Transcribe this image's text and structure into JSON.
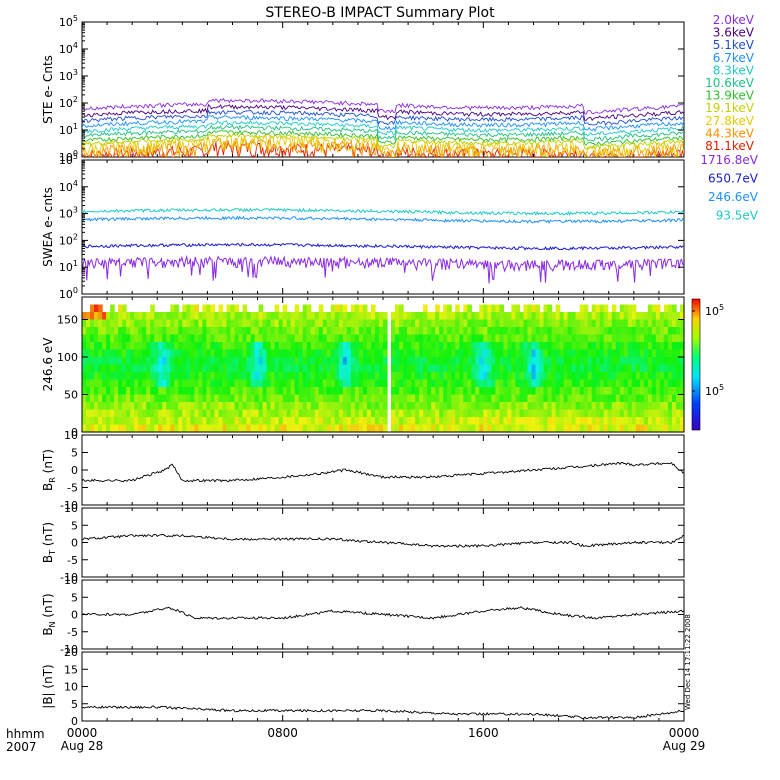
{
  "title": "STEREO-B IMPACT Summary Plot",
  "footer": {
    "left_label_top": "hhmm",
    "left_label_bottom": "2007",
    "side_stamp": "Wed Dec 14 17:11:22 2008"
  },
  "x_axis": {
    "ticks": [
      "0000",
      "0800",
      "1600",
      "0000"
    ],
    "tick_dates": [
      "Aug 28",
      "",
      "",
      "Aug 29"
    ],
    "minor_ticks_per_major": 8
  },
  "panels": {
    "ste": {
      "ylabel": "STE e- Cnts",
      "log": true,
      "ylim_decades": [
        0,
        5
      ],
      "tick_labels": [
        {
          "base": "10",
          "exp": "0"
        },
        {
          "base": "10",
          "exp": "1"
        },
        {
          "base": "10",
          "exp": "2"
        },
        {
          "base": "10",
          "exp": "3"
        },
        {
          "base": "10",
          "exp": "4"
        },
        {
          "base": "10",
          "exp": "5"
        }
      ]
    },
    "swea": {
      "ylabel": "SWEA e- cnts",
      "log": true,
      "ylim_decades": [
        0,
        5
      ],
      "tick_labels": [
        {
          "base": "10",
          "exp": "0"
        },
        {
          "base": "10",
          "exp": "1"
        },
        {
          "base": "10",
          "exp": "2"
        },
        {
          "base": "10",
          "exp": "3"
        },
        {
          "base": "10",
          "exp": "4"
        },
        {
          "base": "10",
          "exp": "5"
        }
      ]
    },
    "pad": {
      "ylabel": "246.6 eV",
      "ylim": [
        0,
        180
      ],
      "tick_labels": [
        "0",
        "50",
        "100",
        "150"
      ],
      "colorbar_labels": [
        {
          "base": "10",
          "exp": "5"
        },
        {
          "base": "10",
          "exp": "5"
        }
      ]
    },
    "br": {
      "ylabel_main": "B",
      "ylabel_sub": "R",
      "ylabel_unit": " (nT)",
      "ylim": [
        -10,
        10
      ],
      "tick_labels": [
        "-10",
        "-5",
        "0",
        "5",
        "10"
      ]
    },
    "bt": {
      "ylabel_main": "B",
      "ylabel_sub": "T",
      "ylabel_unit": " (nT)",
      "ylim": [
        -10,
        10
      ],
      "tick_labels": [
        "-10",
        "-5",
        "0",
        "5",
        "10"
      ]
    },
    "bn": {
      "ylabel_main": "B",
      "ylabel_sub": "N",
      "ylabel_unit": " (nT)",
      "ylim": [
        -10,
        10
      ],
      "tick_labels": [
        "-10",
        "-5",
        "0",
        "5",
        "10"
      ]
    },
    "bmag": {
      "ylabel": "|B| (nT)",
      "ylim": [
        0,
        20
      ],
      "tick_labels": [
        "0",
        "5",
        "10",
        "15",
        "20"
      ]
    }
  },
  "legend_ste": [
    {
      "label": "2.0keV",
      "color": "#8a2be2"
    },
    {
      "label": "3.6keV",
      "color": "#4b0082"
    },
    {
      "label": "5.1keV",
      "color": "#1e4fd0"
    },
    {
      "label": "6.7keV",
      "color": "#1e90ff"
    },
    {
      "label": "8.3keV",
      "color": "#20c8c8"
    },
    {
      "label": "10.6keV",
      "color": "#20c080"
    },
    {
      "label": "13.9keV",
      "color": "#30c030"
    },
    {
      "label": "19.1keV",
      "color": "#c0d000"
    },
    {
      "label": "27.8keV",
      "color": "#e8c800"
    },
    {
      "label": "44.3keV",
      "color": "#ff9000"
    },
    {
      "label": "81.1keV",
      "color": "#e02000"
    }
  ],
  "legend_swea": [
    {
      "label": "1716.8eV",
      "color": "#8a2be2"
    },
    {
      "label": "650.7eV",
      "color": "#1a1ad0"
    },
    {
      "label": "246.6eV",
      "color": "#1e90ff"
    },
    {
      "label": "93.5eV",
      "color": "#20c8c8"
    }
  ],
  "chart_data": [
    {
      "type": "line",
      "panel": "ste",
      "ylabel": "STE e- Cnts",
      "log_y": true,
      "series": [
        {
          "name": "2.0keV",
          "color": "#8a2be2",
          "level": 60,
          "x_hours": [
            0,
            4,
            8,
            12,
            16,
            20,
            24
          ],
          "approx_values": [
            40,
            70,
            100,
            90,
            70,
            110,
            60
          ]
        },
        {
          "name": "3.6keV",
          "color": "#4b0082",
          "level": 35
        },
        {
          "name": "5.1keV",
          "color": "#1e4fd0",
          "level": 22
        },
        {
          "name": "6.7keV",
          "color": "#1e90ff",
          "level": 14
        },
        {
          "name": "8.3keV",
          "color": "#20c8c8",
          "level": 9
        },
        {
          "name": "10.6keV",
          "color": "#20c080",
          "level": 6
        },
        {
          "name": "13.9keV",
          "color": "#30c030",
          "level": 4
        },
        {
          "name": "19.1keV",
          "color": "#c0d000",
          "level": 3
        },
        {
          "name": "27.8keV",
          "color": "#e8c800",
          "level": 2
        },
        {
          "name": "44.3keV",
          "color": "#ff9000",
          "level": 1.5
        },
        {
          "name": "81.1keV",
          "color": "#e02000",
          "level": 1.1
        }
      ]
    },
    {
      "type": "line",
      "panel": "swea",
      "ylabel": "SWEA e- cnts",
      "log_y": true,
      "series": [
        {
          "name": "1716.8eV",
          "color": "#8a2be2",
          "level": 15
        },
        {
          "name": "650.7eV",
          "color": "#1a1ad0",
          "level": 60
        },
        {
          "name": "246.6eV",
          "color": "#1e90ff",
          "level": 600
        },
        {
          "name": "93.5eV",
          "color": "#20c8c8",
          "level": 1200
        }
      ]
    },
    {
      "type": "heatmap",
      "panel": "pad",
      "ylabel": "246.6 eV",
      "ylim": [
        0,
        180
      ],
      "x_hours_range": [
        0,
        24
      ],
      "data_gap_hours": [
        12.1,
        12.35
      ],
      "low_flux_patches_hours": [
        3.2,
        7.0,
        10.5,
        16.0,
        18.0
      ]
    },
    {
      "type": "line",
      "panel": "br",
      "ylabel": "BR (nT)",
      "ylim": [
        -10,
        10
      ],
      "x_hours": [
        0,
        2,
        3.3,
        3.6,
        4,
        6,
        8,
        9.5,
        10.5,
        12,
        14,
        16,
        18,
        20,
        21.5,
        22,
        23.5,
        24
      ],
      "values": [
        -3,
        -3,
        0,
        1.5,
        -3,
        -3,
        -2,
        -1,
        0,
        -2,
        -2,
        -1,
        0,
        1,
        2,
        1.5,
        2,
        -1
      ]
    },
    {
      "type": "line",
      "panel": "bt",
      "ylabel": "BT (nT)",
      "ylim": [
        -10,
        10
      ],
      "x_hours": [
        0,
        2,
        4,
        6,
        8,
        10,
        12,
        14,
        16,
        18,
        19.5,
        20,
        22,
        23.5,
        24
      ],
      "values": [
        1,
        2,
        2,
        1,
        1,
        1,
        0,
        -1,
        -1,
        0,
        0,
        -1,
        0,
        0,
        2
      ]
    },
    {
      "type": "line",
      "panel": "bn",
      "ylabel": "BN (nT)",
      "ylim": [
        -10,
        10
      ],
      "x_hours": [
        0,
        2,
        3.5,
        4.5,
        6,
        8,
        10,
        12,
        14,
        16,
        17.5,
        19,
        20.5,
        22,
        24
      ],
      "values": [
        0,
        0,
        2,
        -1,
        -1,
        -1,
        1,
        0,
        -1,
        1,
        2,
        0,
        -1,
        0,
        1
      ]
    },
    {
      "type": "line",
      "panel": "bmag",
      "ylabel": "|B| (nT)",
      "ylim": [
        0,
        20
      ],
      "x_hours": [
        0,
        3,
        6,
        9,
        12,
        15,
        18,
        20,
        22,
        24
      ],
      "values": [
        4,
        4,
        3,
        3,
        3,
        2,
        2,
        1,
        1,
        3
      ]
    }
  ]
}
